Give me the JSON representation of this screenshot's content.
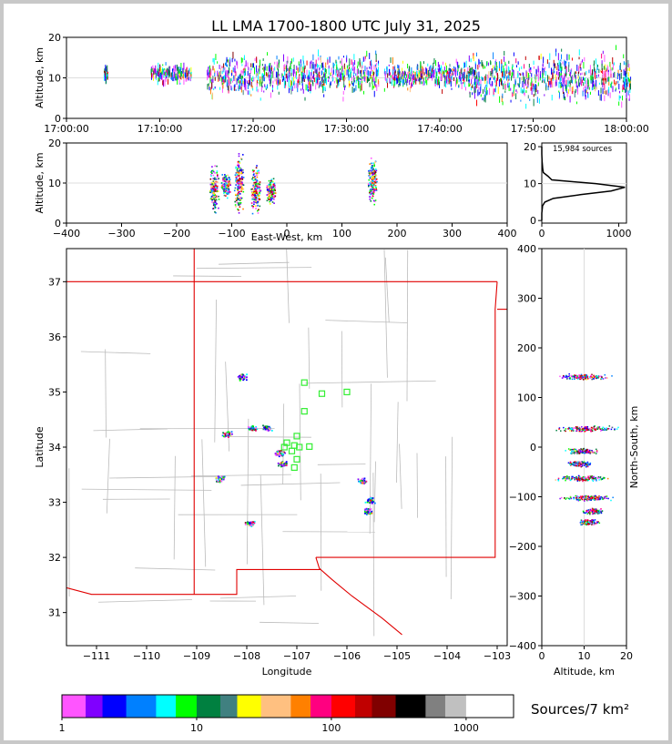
{
  "title": "LL LMA 1700-1800 UTC July 31, 2025",
  "colorbar": {
    "label": "Sources/7 km²",
    "ticks": [
      "1",
      "10",
      "100",
      "1000"
    ],
    "colors": [
      "#ff55ff",
      "#8000ff",
      "#0000ff",
      "#0080ff",
      "#00ffff",
      "#00ff00",
      "#008040",
      "#408080",
      "#ffff00",
      "#ffc080",
      "#ff8000",
      "#ff0080",
      "#ff0000",
      "#c00000",
      "#800000",
      "#000000",
      "#808080",
      "#c0c0c0",
      "#ffffff"
    ]
  },
  "chart_data": [
    {
      "type": "scatter",
      "panel": "altitude-time",
      "ylabel": "Altitude, km",
      "xlim": [
        "17:00:00",
        "18:00:00"
      ],
      "ylim": [
        0,
        20
      ],
      "x_ticks": [
        "17:00:00",
        "17:10:00",
        "17:20:00",
        "17:30:00",
        "17:40:00",
        "17:50:00",
        "18:00:00"
      ],
      "y_ticks": [
        "0",
        "10",
        "20"
      ],
      "activity": [
        {
          "start": "17:04",
          "end": "17:04",
          "alt_low": 9,
          "alt_high": 13
        },
        {
          "start": "17:09",
          "end": "17:13",
          "alt_low": 8,
          "alt_high": 14
        },
        {
          "start": "17:15",
          "end": "17:33",
          "alt_low": 4,
          "alt_high": 17
        },
        {
          "start": "17:34",
          "end": "17:43",
          "alt_low": 6,
          "alt_high": 15
        },
        {
          "start": "17:43",
          "end": "18:00",
          "alt_low": 2,
          "alt_high": 18
        }
      ]
    },
    {
      "type": "heatmap",
      "panel": "altitude-east-west",
      "xlabel": "East-West, km",
      "ylabel": "Altitude, km",
      "xlim": [
        -400,
        400
      ],
      "ylim": [
        0,
        20
      ],
      "x_ticks": [
        "−400",
        "−300",
        "−200",
        "−100",
        "0",
        "100",
        "200",
        "300",
        "400"
      ],
      "y_ticks": [
        "0",
        "10",
        "20"
      ],
      "clusters": [
        {
          "ew": -133,
          "alt_low": 1,
          "alt_high": 16
        },
        {
          "ew": -112,
          "alt_low": 6,
          "alt_high": 13
        },
        {
          "ew": -88,
          "alt_low": 1,
          "alt_high": 19
        },
        {
          "ew": -57,
          "alt_low": 1,
          "alt_high": 15
        },
        {
          "ew": -30,
          "alt_low": 4,
          "alt_high": 12
        },
        {
          "ew": 155,
          "alt_low": 3,
          "alt_high": 18
        }
      ]
    },
    {
      "type": "line",
      "panel": "altitude-histogram",
      "annotation": "15,984 sources",
      "xlim": [
        0,
        1100
      ],
      "ylim": [
        0,
        20
      ],
      "x_ticks": [
        "0",
        "1000"
      ],
      "y_ticks": [
        "0",
        "10",
        "20"
      ],
      "y": [
        0,
        2,
        4,
        5,
        6,
        7,
        8,
        9,
        10,
        11,
        12,
        13,
        14,
        15,
        16,
        17,
        18,
        20
      ],
      "x": [
        0,
        0,
        10,
        40,
        150,
        500,
        900,
        1080,
        700,
        130,
        80,
        20,
        12,
        8,
        4,
        2,
        0,
        0
      ]
    },
    {
      "type": "heatmap",
      "panel": "plan-view",
      "xlabel": "Longitude",
      "ylabel": "Latitude",
      "xlim": [
        -111.6,
        -102.8
      ],
      "ylim": [
        30.4,
        37.6
      ],
      "x_ticks": [
        "−111",
        "−110",
        "−109",
        "−108",
        "−107",
        "−106",
        "−105",
        "−104",
        "−103"
      ],
      "y_ticks": [
        "31",
        "32",
        "33",
        "34",
        "35",
        "36",
        "37"
      ],
      "clusters": [
        {
          "lon": -108.1,
          "lat": 35.28
        },
        {
          "lon": -108.4,
          "lat": 34.25
        },
        {
          "lon": -107.9,
          "lat": 34.35
        },
        {
          "lon": -107.6,
          "lat": 34.36
        },
        {
          "lon": -107.35,
          "lat": 33.9
        },
        {
          "lon": -107.3,
          "lat": 33.7
        },
        {
          "lon": -108.55,
          "lat": 33.43
        },
        {
          "lon": -107.95,
          "lat": 32.63
        },
        {
          "lon": -105.7,
          "lat": 33.4
        },
        {
          "lon": -105.55,
          "lat": 33.05
        },
        {
          "lon": -105.6,
          "lat": 32.85
        }
      ],
      "stations": [
        {
          "lon": -106.85,
          "lat": 35.17
        },
        {
          "lon": -106.5,
          "lat": 34.97
        },
        {
          "lon": -106.0,
          "lat": 35.0
        },
        {
          "lon": -106.85,
          "lat": 34.65
        },
        {
          "lon": -107.0,
          "lat": 34.2
        },
        {
          "lon": -107.2,
          "lat": 34.08
        },
        {
          "lon": -107.05,
          "lat": 34.03
        },
        {
          "lon": -106.95,
          "lat": 34.0
        },
        {
          "lon": -107.25,
          "lat": 34.0
        },
        {
          "lon": -107.1,
          "lat": 33.93
        },
        {
          "lon": -106.75,
          "lat": 34.01
        },
        {
          "lon": -107.0,
          "lat": 33.78
        },
        {
          "lon": -107.05,
          "lat": 33.63
        }
      ]
    },
    {
      "type": "heatmap",
      "panel": "north-south-altitude",
      "xlabel": "Altitude, km",
      "ylabel": "North-South, km",
      "xlim": [
        0,
        20
      ],
      "ylim": [
        -400,
        400
      ],
      "x_ticks": [
        "0",
        "10",
        "20"
      ],
      "y_ticks": [
        "−400",
        "−300",
        "−200",
        "−100",
        "0",
        "100",
        "200",
        "300",
        "400"
      ],
      "clusters": [
        {
          "ns": 143,
          "alt_low": 2,
          "alt_high": 18
        },
        {
          "ns": 38,
          "alt_low": 1,
          "alt_high": 19
        },
        {
          "ns": -7,
          "alt_low": 5,
          "alt_high": 14
        },
        {
          "ns": -33,
          "alt_low": 5,
          "alt_high": 12
        },
        {
          "ns": -62,
          "alt_low": 2,
          "alt_high": 17
        },
        {
          "ns": -102,
          "alt_low": 3,
          "alt_high": 19
        },
        {
          "ns": -128,
          "alt_low": 9,
          "alt_high": 15
        },
        {
          "ns": -150,
          "alt_low": 8,
          "alt_high": 14
        }
      ]
    }
  ]
}
